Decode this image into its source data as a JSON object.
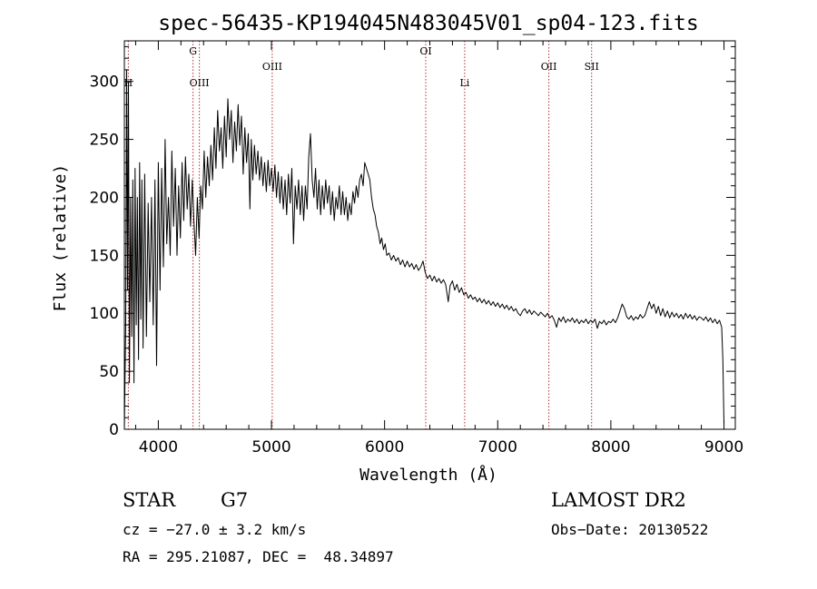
{
  "chart_data": {
    "type": "line",
    "title": "spec-56435-KP194045N483045V01_sp04-123.fits",
    "xlabel": "Wavelength (Å)",
    "ylabel": "Flux (relative)",
    "xlim": [
      3700,
      9100
    ],
    "ylim": [
      0,
      335
    ],
    "xticks": [
      4000,
      5000,
      6000,
      7000,
      8000,
      9000
    ],
    "yticks": [
      0,
      50,
      100,
      150,
      200,
      250,
      300
    ],
    "grid": false,
    "series": [
      {
        "points": [
          [
            3700,
            0
          ],
          [
            3712,
            90
          ],
          [
            3720,
            310
          ],
          [
            3728,
            120
          ],
          [
            3736,
            300
          ],
          [
            3745,
            40
          ],
          [
            3755,
            200
          ],
          [
            3765,
            80
          ],
          [
            3775,
            215
          ],
          [
            3785,
            40
          ],
          [
            3795,
            225
          ],
          [
            3805,
            90
          ],
          [
            3815,
            200
          ],
          [
            3825,
            60
          ],
          [
            3835,
            230
          ],
          [
            3845,
            95
          ],
          [
            3855,
            215
          ],
          [
            3865,
            70
          ],
          [
            3880,
            220
          ],
          [
            3895,
            80
          ],
          [
            3910,
            195
          ],
          [
            3925,
            110
          ],
          [
            3940,
            200
          ],
          [
            3955,
            90
          ],
          [
            3970,
            215
          ],
          [
            3985,
            55
          ],
          [
            4000,
            230
          ],
          [
            4015,
            120
          ],
          [
            4030,
            225
          ],
          [
            4045,
            140
          ],
          [
            4060,
            250
          ],
          [
            4075,
            160
          ],
          [
            4090,
            200
          ],
          [
            4105,
            150
          ],
          [
            4120,
            240
          ],
          [
            4135,
            175
          ],
          [
            4150,
            225
          ],
          [
            4165,
            150
          ],
          [
            4180,
            210
          ],
          [
            4195,
            165
          ],
          [
            4210,
            230
          ],
          [
            4225,
            180
          ],
          [
            4240,
            235
          ],
          [
            4255,
            190
          ],
          [
            4270,
            220
          ],
          [
            4285,
            175
          ],
          [
            4300,
            215
          ],
          [
            4315,
            180
          ],
          [
            4330,
            150
          ],
          [
            4345,
            200
          ],
          [
            4360,
            165
          ],
          [
            4375,
            210
          ],
          [
            4390,
            190
          ],
          [
            4405,
            240
          ],
          [
            4420,
            200
          ],
          [
            4435,
            235
          ],
          [
            4450,
            210
          ],
          [
            4465,
            245
          ],
          [
            4480,
            215
          ],
          [
            4495,
            260
          ],
          [
            4510,
            225
          ],
          [
            4525,
            275
          ],
          [
            4540,
            240
          ],
          [
            4555,
            260
          ],
          [
            4570,
            225
          ],
          [
            4585,
            270
          ],
          [
            4600,
            235
          ],
          [
            4615,
            285
          ],
          [
            4630,
            250
          ],
          [
            4645,
            275
          ],
          [
            4660,
            230
          ],
          [
            4675,
            265
          ],
          [
            4690,
            240
          ],
          [
            4705,
            280
          ],
          [
            4720,
            245
          ],
          [
            4735,
            270
          ],
          [
            4750,
            220
          ],
          [
            4765,
            260
          ],
          [
            4780,
            230
          ],
          [
            4795,
            255
          ],
          [
            4810,
            190
          ],
          [
            4822,
            250
          ],
          [
            4835,
            215
          ],
          [
            4850,
            245
          ],
          [
            4865,
            220
          ],
          [
            4880,
            240
          ],
          [
            4895,
            215
          ],
          [
            4910,
            235
          ],
          [
            4925,
            210
          ],
          [
            4940,
            230
          ],
          [
            4955,
            205
          ],
          [
            4970,
            232
          ],
          [
            4985,
            210
          ],
          [
            5000,
            225
          ],
          [
            5015,
            205
          ],
          [
            5030,
            228
          ],
          [
            5045,
            200
          ],
          [
            5060,
            222
          ],
          [
            5075,
            195
          ],
          [
            5090,
            218
          ],
          [
            5105,
            190
          ],
          [
            5120,
            215
          ],
          [
            5135,
            185
          ],
          [
            5150,
            220
          ],
          [
            5165,
            195
          ],
          [
            5180,
            225
          ],
          [
            5195,
            160
          ],
          [
            5210,
            210
          ],
          [
            5225,
            190
          ],
          [
            5240,
            215
          ],
          [
            5255,
            185
          ],
          [
            5270,
            210
          ],
          [
            5285,
            180
          ],
          [
            5300,
            210
          ],
          [
            5315,
            190
          ],
          [
            5330,
            235
          ],
          [
            5345,
            255
          ],
          [
            5360,
            215
          ],
          [
            5375,
            200
          ],
          [
            5390,
            225
          ],
          [
            5405,
            190
          ],
          [
            5420,
            215
          ],
          [
            5435,
            185
          ],
          [
            5450,
            210
          ],
          [
            5465,
            190
          ],
          [
            5480,
            215
          ],
          [
            5495,
            195
          ],
          [
            5510,
            210
          ],
          [
            5525,
            185
          ],
          [
            5540,
            205
          ],
          [
            5555,
            180
          ],
          [
            5570,
            200
          ],
          [
            5585,
            190
          ],
          [
            5600,
            210
          ],
          [
            5615,
            185
          ],
          [
            5630,
            205
          ],
          [
            5645,
            185
          ],
          [
            5660,
            200
          ],
          [
            5675,
            180
          ],
          [
            5690,
            195
          ],
          [
            5705,
            185
          ],
          [
            5720,
            205
          ],
          [
            5735,
            195
          ],
          [
            5750,
            210
          ],
          [
            5765,
            200
          ],
          [
            5780,
            215
          ],
          [
            5795,
            220
          ],
          [
            5810,
            210
          ],
          [
            5825,
            230
          ],
          [
            5840,
            225
          ],
          [
            5855,
            220
          ],
          [
            5870,
            215
          ],
          [
            5885,
            200
          ],
          [
            5900,
            190
          ],
          [
            5915,
            185
          ],
          [
            5930,
            175
          ],
          [
            5945,
            170
          ],
          [
            5960,
            160
          ],
          [
            5975,
            165
          ],
          [
            5990,
            155
          ],
          [
            6005,
            160
          ],
          [
            6020,
            150
          ],
          [
            6040,
            152
          ],
          [
            6060,
            146
          ],
          [
            6080,
            150
          ],
          [
            6100,
            145
          ],
          [
            6120,
            148
          ],
          [
            6140,
            142
          ],
          [
            6160,
            146
          ],
          [
            6180,
            140
          ],
          [
            6200,
            145
          ],
          [
            6220,
            140
          ],
          [
            6240,
            143
          ],
          [
            6260,
            138
          ],
          [
            6280,
            142
          ],
          [
            6300,
            137
          ],
          [
            6320,
            140
          ],
          [
            6340,
            145
          ],
          [
            6360,
            135
          ],
          [
            6380,
            130
          ],
          [
            6400,
            133
          ],
          [
            6420,
            128
          ],
          [
            6440,
            132
          ],
          [
            6460,
            127
          ],
          [
            6480,
            130
          ],
          [
            6500,
            126
          ],
          [
            6520,
            129
          ],
          [
            6540,
            125
          ],
          [
            6563,
            110
          ],
          [
            6580,
            124
          ],
          [
            6600,
            128
          ],
          [
            6620,
            120
          ],
          [
            6640,
            125
          ],
          [
            6660,
            118
          ],
          [
            6680,
            122
          ],
          [
            6700,
            116
          ],
          [
            6720,
            118
          ],
          [
            6740,
            113
          ],
          [
            6760,
            116
          ],
          [
            6780,
            112
          ],
          [
            6800,
            114
          ],
          [
            6820,
            110
          ],
          [
            6840,
            113
          ],
          [
            6860,
            109
          ],
          [
            6880,
            112
          ],
          [
            6900,
            108
          ],
          [
            6920,
            111
          ],
          [
            6940,
            107
          ],
          [
            6960,
            110
          ],
          [
            6980,
            106
          ],
          [
            7000,
            109
          ],
          [
            7020,
            105
          ],
          [
            7040,
            108
          ],
          [
            7060,
            104
          ],
          [
            7080,
            107
          ],
          [
            7100,
            103
          ],
          [
            7120,
            106
          ],
          [
            7140,
            102
          ],
          [
            7160,
            104
          ],
          [
            7180,
            100
          ],
          [
            7200,
            98
          ],
          [
            7220,
            102
          ],
          [
            7240,
            104
          ],
          [
            7260,
            100
          ],
          [
            7280,
            103
          ],
          [
            7300,
            99
          ],
          [
            7320,
            102
          ],
          [
            7340,
            100
          ],
          [
            7360,
            98
          ],
          [
            7380,
            101
          ],
          [
            7400,
            99
          ],
          [
            7420,
            97
          ],
          [
            7440,
            100
          ],
          [
            7460,
            96
          ],
          [
            7480,
            98
          ],
          [
            7500,
            94
          ],
          [
            7520,
            88
          ],
          [
            7540,
            96
          ],
          [
            7560,
            93
          ],
          [
            7580,
            97
          ],
          [
            7600,
            92
          ],
          [
            7620,
            95
          ],
          [
            7640,
            93
          ],
          [
            7660,
            96
          ],
          [
            7680,
            92
          ],
          [
            7700,
            95
          ],
          [
            7720,
            91
          ],
          [
            7740,
            94
          ],
          [
            7760,
            92
          ],
          [
            7780,
            95
          ],
          [
            7800,
            91
          ],
          [
            7820,
            94
          ],
          [
            7840,
            92
          ],
          [
            7860,
            95
          ],
          [
            7880,
            87
          ],
          [
            7900,
            93
          ],
          [
            7920,
            91
          ],
          [
            7940,
            94
          ],
          [
            7960,
            90
          ],
          [
            7980,
            93
          ],
          [
            8000,
            92
          ],
          [
            8020,
            95
          ],
          [
            8040,
            92
          ],
          [
            8060,
            96
          ],
          [
            8080,
            102
          ],
          [
            8100,
            108
          ],
          [
            8120,
            104
          ],
          [
            8140,
            97
          ],
          [
            8160,
            95
          ],
          [
            8180,
            98
          ],
          [
            8200,
            94
          ],
          [
            8220,
            97
          ],
          [
            8240,
            95
          ],
          [
            8260,
            99
          ],
          [
            8280,
            96
          ],
          [
            8300,
            98
          ],
          [
            8320,
            104
          ],
          [
            8340,
            110
          ],
          [
            8360,
            104
          ],
          [
            8380,
            108
          ],
          [
            8400,
            100
          ],
          [
            8420,
            106
          ],
          [
            8440,
            98
          ],
          [
            8460,
            104
          ],
          [
            8480,
            97
          ],
          [
            8500,
            102
          ],
          [
            8520,
            96
          ],
          [
            8540,
            101
          ],
          [
            8560,
            97
          ],
          [
            8580,
            100
          ],
          [
            8600,
            96
          ],
          [
            8620,
            99
          ],
          [
            8640,
            95
          ],
          [
            8660,
            100
          ],
          [
            8680,
            96
          ],
          [
            8700,
            99
          ],
          [
            8720,
            95
          ],
          [
            8740,
            98
          ],
          [
            8760,
            94
          ],
          [
            8780,
            97
          ],
          [
            8800,
            96
          ],
          [
            8820,
            94
          ],
          [
            8840,
            97
          ],
          [
            8860,
            93
          ],
          [
            8880,
            96
          ],
          [
            8900,
            92
          ],
          [
            8920,
            95
          ],
          [
            8940,
            91
          ],
          [
            8960,
            94
          ],
          [
            8980,
            88
          ],
          [
            8990,
            60
          ],
          [
            9000,
            5
          ]
        ]
      }
    ],
    "lines": [
      {
        "label": "H",
        "x": 3735,
        "row": 2
      },
      {
        "label": "G",
        "x": 4307,
        "row": 0
      },
      {
        "label": "OIII",
        "x": 4363,
        "row": 2
      },
      {
        "label": "OIII",
        "x": 5007,
        "row": 1
      },
      {
        "label": "OI",
        "x": 6364,
        "row": 0
      },
      {
        "label": "Li",
        "x": 6708,
        "row": 2
      },
      {
        "label": "OII",
        "x": 7452,
        "row": 1
      },
      {
        "label": "SII",
        "x": 7830,
        "row": 1
      }
    ],
    "line_color": "#b03030"
  },
  "info": {
    "class": "STAR",
    "subclass": "G7",
    "survey": "LAMOST DR2",
    "cz": "cz = −27.0 ± 3.2 km/s",
    "obs_date": "Obs−Date: 20130522",
    "radec": "RA = 295.21087, DEC =  48.34897"
  }
}
